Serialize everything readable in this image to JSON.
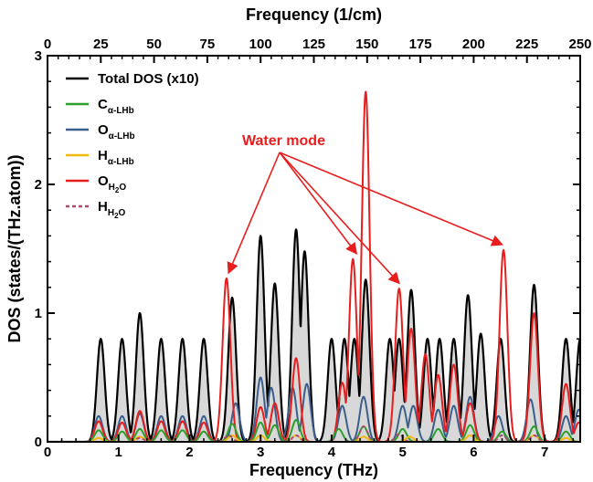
{
  "chart_data": {
    "type": "area",
    "xlabel": "Frequency (THz)",
    "x2label": "Frequency (1/cm)",
    "ylabel": "DOS (states/(THz.atom))",
    "xlim": [
      0,
      7.5
    ],
    "ylim": [
      0,
      3
    ],
    "x2lim": [
      0,
      250
    ],
    "xticks": [
      "0",
      "1",
      "2",
      "3",
      "4",
      "5",
      "6",
      "7"
    ],
    "x2ticks": [
      "0",
      "25",
      "50",
      "75",
      "100",
      "125",
      "150",
      "175",
      "200",
      "225",
      "250"
    ],
    "yticks": [
      "0",
      "1",
      "2",
      "3"
    ],
    "grid": false,
    "legend_position": "top-left",
    "legend": [
      {
        "main": "Total DOS (x10)",
        "sub": "",
        "sub2": "",
        "color": "#000000",
        "dash": false
      },
      {
        "main": "C",
        "sub": "α-LHb",
        "sub2": "",
        "color": "#2ca02c",
        "dash": false
      },
      {
        "main": "O",
        "sub": "α-LHb",
        "sub2": "",
        "color": "#3b5f8c",
        "dash": false
      },
      {
        "main": "H",
        "sub": "α-LHb",
        "sub2": "",
        "color": "#f2b90f",
        "dash": false
      },
      {
        "main": "O",
        "sub": "H",
        "sub2": "2",
        "sub3": "O",
        "color": "#e81e1e",
        "dash": false
      },
      {
        "main": "H",
        "sub": "H",
        "sub2": "2",
        "sub3": "O",
        "color": "#b04a6a",
        "dash": true
      }
    ],
    "annotation": {
      "text": "Water mode",
      "color": "#e81e1e",
      "targets": [
        {
          "x": 2.55,
          "y": 1.27
        },
        {
          "x": 4.35,
          "y": 1.42
        },
        {
          "x": 4.95,
          "y": 1.19
        },
        {
          "x": 6.4,
          "y": 1.49
        }
      ]
    },
    "series": [
      {
        "name": "Total DOS (x10)",
        "color": "#000000",
        "fill": "#d8d8d8",
        "peaks": [
          [
            0.75,
            0.8
          ],
          [
            1.05,
            0.8
          ],
          [
            1.3,
            1.0
          ],
          [
            1.6,
            0.8
          ],
          [
            1.9,
            0.8
          ],
          [
            2.2,
            0.8
          ],
          [
            2.6,
            1.12
          ],
          [
            3.0,
            1.6
          ],
          [
            3.2,
            1.23
          ],
          [
            3.5,
            1.65
          ],
          [
            3.62,
            1.48
          ],
          [
            4.0,
            0.8
          ],
          [
            4.18,
            0.8
          ],
          [
            4.32,
            0.8
          ],
          [
            4.48,
            1.26
          ],
          [
            4.82,
            0.8
          ],
          [
            4.95,
            0.8
          ],
          [
            5.12,
            1.18
          ],
          [
            5.35,
            0.8
          ],
          [
            5.52,
            0.8
          ],
          [
            5.72,
            0.8
          ],
          [
            5.92,
            1.14
          ],
          [
            6.1,
            0.84
          ],
          [
            6.38,
            0.8
          ],
          [
            6.85,
            1.22
          ],
          [
            7.3,
            0.8
          ],
          [
            7.5,
            0.8
          ]
        ]
      },
      {
        "name": "O α-LHb",
        "color": "#3b5f8c",
        "peaks": [
          [
            0.72,
            0.2
          ],
          [
            1.05,
            0.2
          ],
          [
            1.3,
            0.22
          ],
          [
            1.6,
            0.2
          ],
          [
            1.9,
            0.2
          ],
          [
            2.2,
            0.2
          ],
          [
            2.65,
            0.3
          ],
          [
            3.0,
            0.5
          ],
          [
            3.15,
            0.42
          ],
          [
            3.45,
            0.42
          ],
          [
            3.65,
            0.45
          ],
          [
            4.15,
            0.28
          ],
          [
            4.45,
            0.35
          ],
          [
            5.0,
            0.28
          ],
          [
            5.15,
            0.28
          ],
          [
            5.5,
            0.25
          ],
          [
            5.72,
            0.28
          ],
          [
            5.95,
            0.35
          ],
          [
            6.35,
            0.2
          ],
          [
            6.8,
            0.33
          ],
          [
            7.3,
            0.2
          ],
          [
            7.48,
            0.25
          ]
        ]
      },
      {
        "name": "O H2O",
        "color": "#e81e1e",
        "peaks": [
          [
            0.72,
            0.16
          ],
          [
            1.05,
            0.15
          ],
          [
            1.3,
            0.24
          ],
          [
            1.6,
            0.16
          ],
          [
            1.9,
            0.16
          ],
          [
            2.2,
            0.15
          ],
          [
            2.52,
            1.27
          ],
          [
            3.0,
            0.27
          ],
          [
            3.2,
            0.3
          ],
          [
            3.5,
            0.65
          ],
          [
            4.15,
            0.46
          ],
          [
            4.3,
            1.42
          ],
          [
            4.48,
            2.72
          ],
          [
            4.95,
            1.19
          ],
          [
            5.12,
            0.88
          ],
          [
            5.32,
            0.68
          ],
          [
            5.5,
            0.52
          ],
          [
            5.72,
            0.6
          ],
          [
            5.95,
            0.3
          ],
          [
            6.42,
            1.49
          ],
          [
            6.85,
            1.0
          ],
          [
            7.3,
            0.45
          ],
          [
            7.48,
            0.15
          ]
        ]
      },
      {
        "name": "C α-LHb",
        "color": "#2ca02c",
        "peaks": [
          [
            0.72,
            0.09
          ],
          [
            1.05,
            0.08
          ],
          [
            1.3,
            0.1
          ],
          [
            1.6,
            0.09
          ],
          [
            1.9,
            0.09
          ],
          [
            2.2,
            0.08
          ],
          [
            2.6,
            0.14
          ],
          [
            3.0,
            0.15
          ],
          [
            3.2,
            0.13
          ],
          [
            3.5,
            0.17
          ],
          [
            4.1,
            0.1
          ],
          [
            4.45,
            0.12
          ],
          [
            5.0,
            0.1
          ],
          [
            5.5,
            0.1
          ],
          [
            5.95,
            0.13
          ],
          [
            6.4,
            0.08
          ],
          [
            6.85,
            0.12
          ],
          [
            7.3,
            0.08
          ]
        ]
      },
      {
        "name": "H α-LHb",
        "color": "#f2b90f",
        "peaks": [
          [
            0.72,
            0.03
          ],
          [
            1.3,
            0.04
          ],
          [
            2.6,
            0.05
          ],
          [
            3.0,
            0.05
          ],
          [
            3.5,
            0.05
          ],
          [
            4.45,
            0.04
          ],
          [
            5.1,
            0.04
          ],
          [
            5.95,
            0.05
          ],
          [
            6.85,
            0.05
          ],
          [
            7.3,
            0.03
          ]
        ]
      },
      {
        "name": "H H2O",
        "color": "#b04a6a",
        "dash": true,
        "peaks": [
          [
            1.3,
            0.03
          ],
          [
            2.55,
            0.05
          ],
          [
            3.5,
            0.05
          ],
          [
            4.45,
            0.12
          ],
          [
            4.95,
            0.06
          ],
          [
            6.4,
            0.05
          ],
          [
            6.85,
            0.05
          ]
        ]
      }
    ]
  }
}
